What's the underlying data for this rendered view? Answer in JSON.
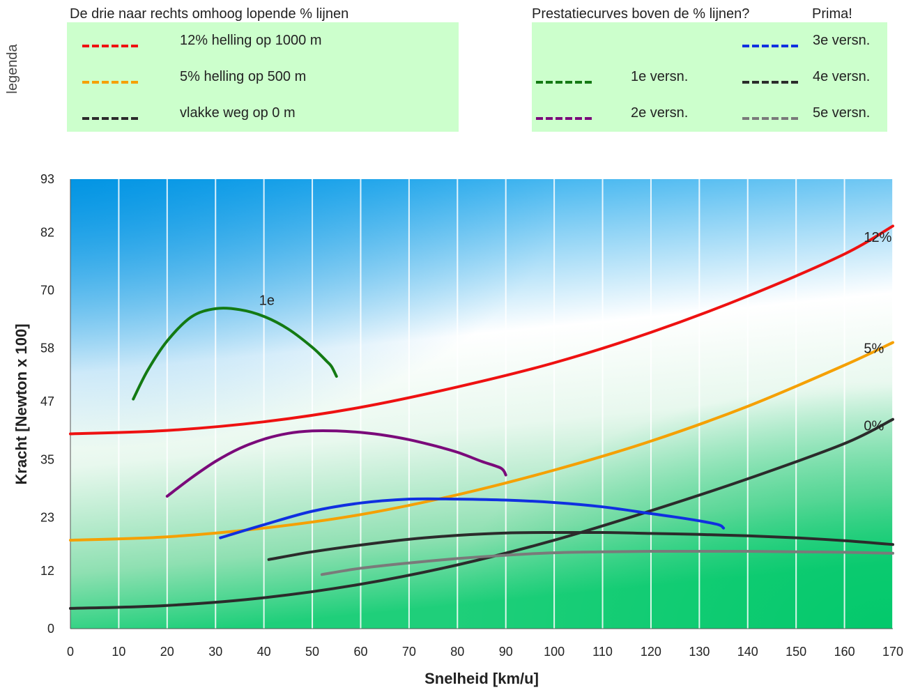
{
  "colors": {
    "red": "#ee1111",
    "orange": "#f5a000",
    "black": "#2b2b2b",
    "green": "#137a13",
    "purple": "#7a0a7a",
    "blue": "#1030e0",
    "gray": "#7a7a7a",
    "legend_bg": "#ccffcc"
  },
  "legend": {
    "side_label": "legenda",
    "left_title": "De drie naar rechts omhoog lopende % lijnen",
    "right_title": "Prestatiecurves boven de % lijnen?",
    "right_title_extra": "Prima!",
    "left_items": [
      {
        "label": "12% helling op 1000 m",
        "color": "red"
      },
      {
        "label": "5% helling op 500 m",
        "color": "orange"
      },
      {
        "label": "vlakke weg op 0 m",
        "color": "black"
      }
    ],
    "right_items": [
      {
        "label": "1e versn.",
        "color": "green"
      },
      {
        "label": "2e versn.",
        "color": "purple"
      },
      {
        "label": "3e versn.",
        "color": "blue"
      },
      {
        "label": "4e versn.",
        "color": "black"
      },
      {
        "label": "5e versn.",
        "color": "gray"
      }
    ]
  },
  "chart_data": {
    "type": "line",
    "xlabel": "Snelheid [km/u]",
    "ylabel": "Kracht [Newton x 100]",
    "xlim": [
      0,
      170
    ],
    "ylim": [
      0,
      93
    ],
    "xticks": [
      0,
      10,
      20,
      30,
      40,
      50,
      60,
      70,
      80,
      90,
      100,
      110,
      120,
      130,
      140,
      150,
      160,
      170
    ],
    "yticks": [
      0,
      12,
      23,
      35,
      47,
      58,
      70,
      82,
      93
    ],
    "grid": "vertical",
    "series": [
      {
        "name": "12%",
        "color": "red",
        "x": [
          0,
          20,
          40,
          60,
          80,
          100,
          120,
          140,
          160,
          170
        ],
        "y": [
          40.3,
          41.0,
          42.8,
          45.8,
          50.0,
          55.0,
          61.3,
          68.8,
          77.5,
          83.3
        ]
      },
      {
        "name": "5%",
        "color": "orange",
        "x": [
          0,
          20,
          40,
          60,
          80,
          100,
          120,
          140,
          160,
          170
        ],
        "y": [
          18.3,
          19.0,
          20.8,
          23.6,
          27.7,
          32.8,
          38.8,
          46.0,
          54.5,
          59.2
        ]
      },
      {
        "name": "0%",
        "color": "black",
        "x": [
          0,
          20,
          40,
          60,
          80,
          100,
          120,
          140,
          160,
          170
        ],
        "y": [
          4.2,
          4.8,
          6.4,
          9.2,
          13.2,
          18.3,
          24.4,
          31.0,
          38.3,
          43.3
        ]
      },
      {
        "name": "1e",
        "color": "green",
        "x": [
          13,
          16,
          20,
          25,
          30,
          35,
          40,
          45,
          50,
          53,
          54,
          55
        ],
        "y": [
          47.5,
          53.5,
          59.5,
          64.5,
          66.2,
          66.0,
          64.6,
          62.0,
          58.2,
          55.3,
          54.2,
          52.2
        ]
      },
      {
        "name": "2e",
        "color": "purple",
        "x": [
          20,
          25,
          30,
          35,
          40,
          45,
          50,
          55,
          60,
          65,
          70,
          75,
          80,
          85,
          89,
          90
        ],
        "y": [
          27.4,
          31.2,
          34.6,
          37.3,
          39.2,
          40.4,
          40.9,
          40.9,
          40.6,
          40.0,
          39.1,
          37.9,
          36.5,
          34.6,
          33.2,
          31.8
        ]
      },
      {
        "name": "3e",
        "color": "blue",
        "x": [
          31,
          40,
          50,
          60,
          70,
          80,
          90,
          100,
          110,
          120,
          125,
          130,
          134,
          135
        ],
        "y": [
          18.8,
          21.5,
          24.3,
          26.0,
          26.8,
          26.8,
          26.6,
          26.1,
          25.2,
          23.8,
          23.1,
          22.3,
          21.5,
          20.8
        ]
      },
      {
        "name": "4e",
        "color": "black",
        "x": [
          41,
          50,
          60,
          70,
          80,
          90,
          100,
          110,
          120,
          130,
          140,
          150,
          160,
          170
        ],
        "y": [
          14.3,
          15.9,
          17.3,
          18.5,
          19.3,
          19.8,
          19.9,
          19.9,
          19.7,
          19.5,
          19.2,
          18.8,
          18.2,
          17.4
        ]
      },
      {
        "name": "5e",
        "color": "gray",
        "x": [
          52,
          60,
          70,
          80,
          90,
          100,
          110,
          120,
          130,
          140,
          150,
          160,
          170
        ],
        "y": [
          11.2,
          12.5,
          13.6,
          14.5,
          15.2,
          15.7,
          15.9,
          16.0,
          16.0,
          16.0,
          15.9,
          15.8,
          15.6
        ]
      }
    ],
    "annotations": [
      {
        "text": "12%",
        "x": 164,
        "y": 80
      },
      {
        "text": "5%",
        "x": 164,
        "y": 57
      },
      {
        "text": "0%",
        "x": 164,
        "y": 41
      },
      {
        "text": "1e",
        "x": 39,
        "y": 67
      }
    ]
  }
}
